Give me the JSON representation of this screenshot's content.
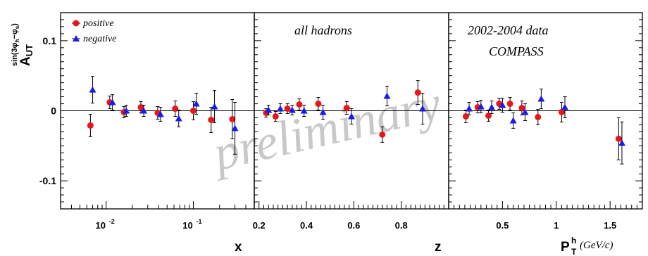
{
  "figure": {
    "ylabel_main": "A",
    "ylabel_sub": "UT",
    "ylabel_sup": "sin(3φ",
    "ylabel_sup_h": "h",
    "ylabel_sup_mid": "−φ",
    "ylabel_sup_s": "s",
    "ylabel_sup_end": ")",
    "watermark": "preliminary",
    "colors": {
      "positive": "#e8161b",
      "negative": "#1b1be6",
      "axis": "#000000",
      "watermark": "#c8c8c8"
    }
  },
  "chart_data": [
    {
      "type": "scatter",
      "panel": "x",
      "xlabel": "x",
      "xscale": "log",
      "xlim": [
        0.003,
        0.5
      ],
      "ylim": [
        -0.14,
        0.14
      ],
      "yticks": [
        -0.1,
        0,
        0.1
      ],
      "ytick_labels": [
        "-0.1",
        "0",
        "0.1"
      ],
      "xticks": [
        0.01,
        0.1
      ],
      "xtick_labels": [
        "10",
        "10"
      ],
      "xtick_exps": [
        "-2",
        "-1"
      ],
      "legend": {
        "position": "top-left",
        "entries": [
          "positive",
          "negative"
        ]
      },
      "series": [
        {
          "name": "positive",
          "marker": "circle",
          "x": [
            0.0066,
            0.011,
            0.016,
            0.025,
            0.039,
            0.062,
            0.1,
            0.16,
            0.28
          ],
          "y": [
            -0.021,
            0.012,
            -0.002,
            0.005,
            -0.003,
            0.003,
            0.0,
            -0.013,
            -0.012
          ],
          "err": [
            0.016,
            0.009,
            0.008,
            0.008,
            0.009,
            0.011,
            0.013,
            0.018,
            0.028
          ]
        },
        {
          "name": "negative",
          "marker": "triangle",
          "x": [
            0.007,
            0.0118,
            0.017,
            0.027,
            0.042,
            0.068,
            0.108,
            0.175,
            0.3
          ],
          "y": [
            0.03,
            0.012,
            0.0,
            0.0,
            -0.005,
            -0.011,
            0.01,
            0.006,
            -0.025
          ],
          "err": [
            0.019,
            0.011,
            0.008,
            0.008,
            0.01,
            0.012,
            0.015,
            0.023,
            0.037
          ]
        }
      ]
    },
    {
      "type": "scatter",
      "panel": "z",
      "xlabel": "z",
      "xscale": "linear",
      "xlim": [
        0.18,
        1.0
      ],
      "ylim": [
        -0.14,
        0.14
      ],
      "xticks": [
        0.2,
        0.4,
        0.6,
        0.8
      ],
      "xtick_labels": [
        "0.2",
        "0.4",
        "0.6",
        "0.8"
      ],
      "annotation": "all hadrons",
      "series": [
        {
          "name": "positive",
          "marker": "circle",
          "x": [
            0.23,
            0.27,
            0.32,
            0.37,
            0.45,
            0.57,
            0.72,
            0.87
          ],
          "y": [
            -0.003,
            -0.008,
            0.003,
            0.009,
            0.01,
            0.004,
            -0.034,
            0.026
          ],
          "err": [
            0.006,
            0.007,
            0.007,
            0.008,
            0.009,
            0.009,
            0.011,
            0.017
          ]
        },
        {
          "name": "negative",
          "marker": "triangle",
          "x": [
            0.24,
            0.29,
            0.34,
            0.39,
            0.47,
            0.59,
            0.74,
            0.89
          ],
          "y": [
            0.001,
            0.003,
            0.001,
            0.0,
            -0.002,
            -0.008,
            0.021,
            0.003
          ],
          "err": [
            0.007,
            0.007,
            0.007,
            0.008,
            0.01,
            0.011,
            0.014,
            0.022
          ]
        }
      ]
    },
    {
      "type": "scatter",
      "panel": "pt",
      "xlabel": "P",
      "xlabel_sup": "h",
      "xlabel_sub": "T",
      "xunit": "(GeV/c)",
      "xscale": "linear",
      "xlim": [
        0.0,
        1.8
      ],
      "ylim": [
        -0.14,
        0.14
      ],
      "xticks": [
        0.5,
        1.0,
        1.5
      ],
      "xtick_labels": [
        "0.5",
        "1",
        "1.5"
      ],
      "annotation_1": "2002-2004 data",
      "annotation_2": "COMPASS",
      "series": [
        {
          "name": "positive",
          "marker": "circle",
          "x": [
            0.16,
            0.27,
            0.37,
            0.47,
            0.57,
            0.68,
            0.83,
            1.05,
            1.58
          ],
          "y": [
            -0.008,
            0.005,
            -0.007,
            0.01,
            0.01,
            0.004,
            -0.009,
            -0.002,
            -0.04
          ],
          "err": [
            0.009,
            0.008,
            0.008,
            0.008,
            0.009,
            0.01,
            0.011,
            0.014,
            0.03
          ]
        },
        {
          "name": "negative",
          "marker": "triangle",
          "x": [
            0.19,
            0.3,
            0.4,
            0.5,
            0.6,
            0.71,
            0.86,
            1.08,
            1.61
          ],
          "y": [
            0.003,
            0.006,
            0.005,
            0.008,
            -0.014,
            -0.002,
            0.017,
            0.005,
            -0.046
          ],
          "err": [
            0.009,
            0.009,
            0.009,
            0.01,
            0.011,
            0.012,
            0.014,
            0.015,
            0.03
          ]
        }
      ]
    }
  ]
}
